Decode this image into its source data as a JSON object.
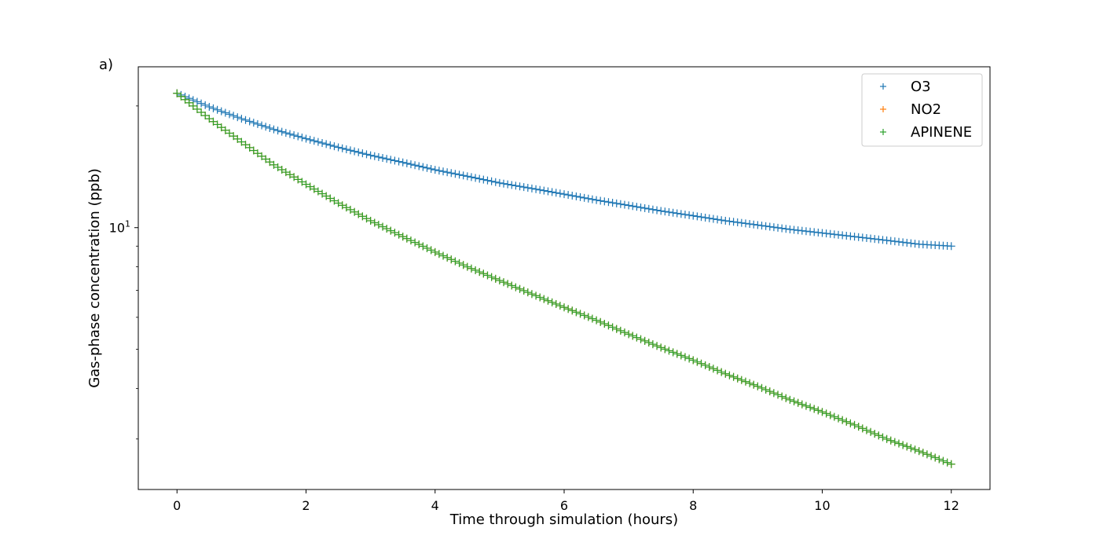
{
  "figure": {
    "panel_label": "a)"
  },
  "chart_data": {
    "type": "scatter",
    "marker": "+",
    "xlabel": "Time through simulation (hours)",
    "ylabel": "Gas-phase concentration (ppb)",
    "xlim": [
      -0.6,
      12.6
    ],
    "ylim": [
      2.25,
      25.0
    ],
    "yscale": "log",
    "xticks": [
      0,
      2,
      4,
      6,
      8,
      10,
      12
    ],
    "yticks_major": [
      {
        "value": 10,
        "base": "10",
        "exp": "1"
      }
    ],
    "yticks_minor": [
      3,
      4,
      5,
      6,
      7,
      8,
      9,
      20
    ],
    "grid": false,
    "legend": {
      "placement": "top-right"
    },
    "series": [
      {
        "name": "O3",
        "color": "#1f77b4",
        "x": [
          0,
          0.5,
          1,
          1.5,
          2,
          2.5,
          3,
          3.5,
          4,
          4.5,
          5,
          5.5,
          6,
          6.5,
          7,
          7.5,
          8,
          8.5,
          9,
          9.5,
          10,
          10.5,
          11,
          11.5,
          12
        ],
        "y": [
          21.5,
          19.9,
          18.6,
          17.5,
          16.6,
          15.8,
          15.1,
          14.5,
          13.9,
          13.4,
          12.9,
          12.5,
          12.1,
          11.7,
          11.35,
          11.0,
          10.7,
          10.4,
          10.15,
          9.9,
          9.7,
          9.5,
          9.3,
          9.1,
          9.0
        ]
      },
      {
        "name": "NO2",
        "color": "#ff7f0e",
        "x": [
          0,
          0.5,
          1,
          1.5,
          2,
          2.5,
          3,
          3.5,
          4,
          4.5,
          5,
          5.5,
          6,
          6.5,
          7,
          7.5,
          8,
          8.5,
          9,
          9.5,
          10,
          10.5,
          11,
          11.5,
          12
        ],
        "y": [
          21.5,
          18.6,
          16.3,
          14.3,
          12.8,
          11.5,
          10.4,
          9.5,
          8.7,
          8.0,
          7.4,
          6.85,
          6.35,
          5.9,
          5.45,
          5.05,
          4.7,
          4.35,
          4.05,
          3.75,
          3.5,
          3.25,
          3.0,
          2.8,
          2.6
        ]
      },
      {
        "name": "APINENE",
        "color": "#2ca02c",
        "x": [
          0,
          0.5,
          1,
          1.5,
          2,
          2.5,
          3,
          3.5,
          4,
          4.5,
          5,
          5.5,
          6,
          6.5,
          7,
          7.5,
          8,
          8.5,
          9,
          9.5,
          10,
          10.5,
          11,
          11.5,
          12
        ],
        "y": [
          21.5,
          18.6,
          16.3,
          14.3,
          12.8,
          11.5,
          10.4,
          9.5,
          8.7,
          8.0,
          7.4,
          6.85,
          6.35,
          5.9,
          5.45,
          5.05,
          4.7,
          4.35,
          4.05,
          3.75,
          3.5,
          3.25,
          3.0,
          2.8,
          2.6
        ]
      }
    ]
  }
}
